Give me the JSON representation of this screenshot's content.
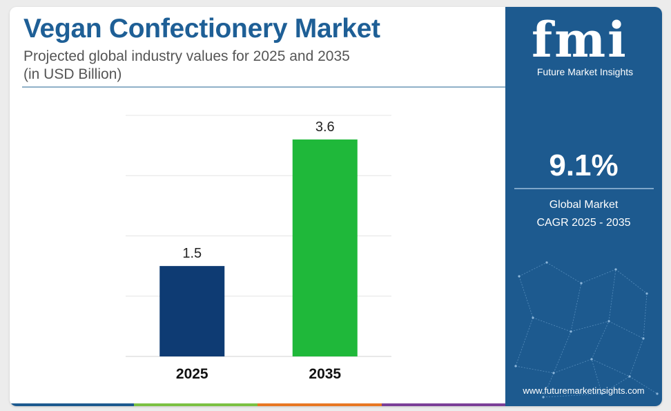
{
  "header": {
    "title": "Vegan Confectionery Market",
    "subtitle_line1": "Projected global industry values for 2025 and 2035",
    "subtitle_line2": "(in USD Billion)"
  },
  "chart_data": {
    "type": "bar",
    "categories": [
      "2025",
      "2035"
    ],
    "values": [
      1.5,
      3.6
    ],
    "data_labels": [
      "1.5",
      "3.6"
    ],
    "bar_colors": [
      "#0e3b73",
      "#1fb83a"
    ],
    "ylim": [
      0,
      4
    ],
    "grid": true,
    "y_tick_labels_shown": false
  },
  "side_panel": {
    "logo_mark": "fmi",
    "logo_text": "Future Market Insights",
    "cagr_value": "9.1%",
    "cagr_label_line1": "Global Market",
    "cagr_label_line2": "CAGR 2025 - 2035",
    "website": "www.futuremarketinsights.com"
  },
  "colors": {
    "title": "#1e5f96",
    "panel": "#1d5a8f",
    "bottom_bar": [
      "#1d5a8f",
      "#7bc142",
      "#e87722",
      "#7b3f98"
    ]
  }
}
